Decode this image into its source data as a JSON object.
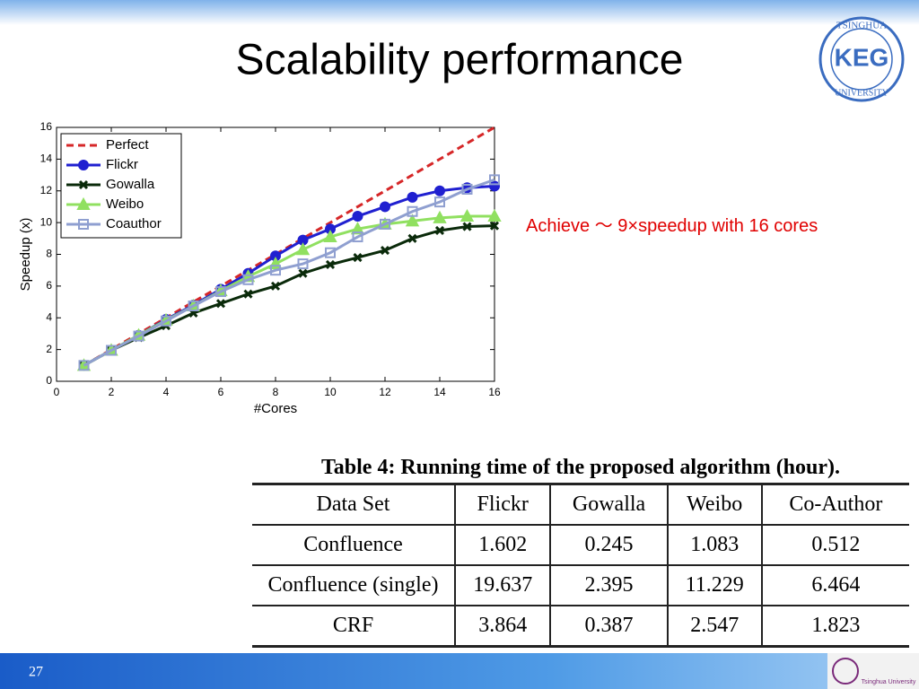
{
  "title": "Scalability performance",
  "logo": {
    "top": "TSINGHUA",
    "main": "KEG",
    "bottom": "UNIVERSITY"
  },
  "annotation": "Achieve ～ 9×speedup with 16 cores",
  "page_number": "27",
  "footer_logo": "Tsinghua University",
  "chart_data": {
    "type": "line",
    "xlabel": "#Cores",
    "ylabel": "Speedup (x)",
    "x": [
      1,
      2,
      3,
      4,
      5,
      6,
      7,
      8,
      9,
      10,
      11,
      12,
      13,
      14,
      15,
      16
    ],
    "xlim": [
      0,
      16
    ],
    "xticks": [
      0,
      2,
      4,
      6,
      8,
      10,
      12,
      14,
      16
    ],
    "ylim": [
      0,
      16
    ],
    "yticks": [
      0,
      2,
      4,
      6,
      8,
      10,
      12,
      14,
      16
    ],
    "legend": "upper left",
    "series": [
      {
        "name": "Perfect",
        "color": "#d62728",
        "dash": true,
        "marker": "none",
        "values": [
          1,
          2,
          3,
          4,
          5,
          6,
          7,
          8,
          9,
          10,
          11,
          12,
          13,
          14,
          15,
          16
        ]
      },
      {
        "name": "Flickr",
        "color": "#2020d0",
        "marker": "circle",
        "values": [
          1,
          1.95,
          2.9,
          3.9,
          4.8,
          5.8,
          6.8,
          7.9,
          8.9,
          9.6,
          10.4,
          11.0,
          11.6,
          12.0,
          12.2,
          12.3
        ]
      },
      {
        "name": "Gowalla",
        "color": "#0a2a0a",
        "marker": "x",
        "values": [
          1,
          1.95,
          2.75,
          3.5,
          4.3,
          4.9,
          5.5,
          6.0,
          6.8,
          7.35,
          7.8,
          8.25,
          9.0,
          9.5,
          9.75,
          9.8
        ]
      },
      {
        "name": "Weibo",
        "color": "#90e060",
        "marker": "triangle",
        "values": [
          1,
          1.95,
          2.9,
          3.85,
          4.75,
          5.7,
          6.6,
          7.4,
          8.3,
          9.1,
          9.6,
          9.9,
          10.1,
          10.3,
          10.4,
          10.4
        ]
      },
      {
        "name": "Coauthor",
        "color": "#8f9fd0",
        "marker": "square",
        "values": [
          1,
          1.95,
          2.85,
          3.8,
          4.75,
          5.65,
          6.4,
          7.0,
          7.4,
          8.1,
          9.1,
          9.9,
          10.7,
          11.3,
          12.1,
          12.7
        ]
      }
    ]
  },
  "table": {
    "caption": "Table 4: Running time of the proposed algorithm (hour).",
    "header": [
      "Data Set",
      "Flickr",
      "Gowalla",
      "Weibo",
      "Co-Author"
    ],
    "rows": [
      [
        "Confluence",
        "1.602",
        "0.245",
        "1.083",
        "0.512"
      ],
      [
        "Confluence (single)",
        "19.637",
        "2.395",
        "11.229",
        "6.464"
      ],
      [
        "CRF",
        "3.864",
        "0.387",
        "2.547",
        "1.823"
      ]
    ]
  }
}
